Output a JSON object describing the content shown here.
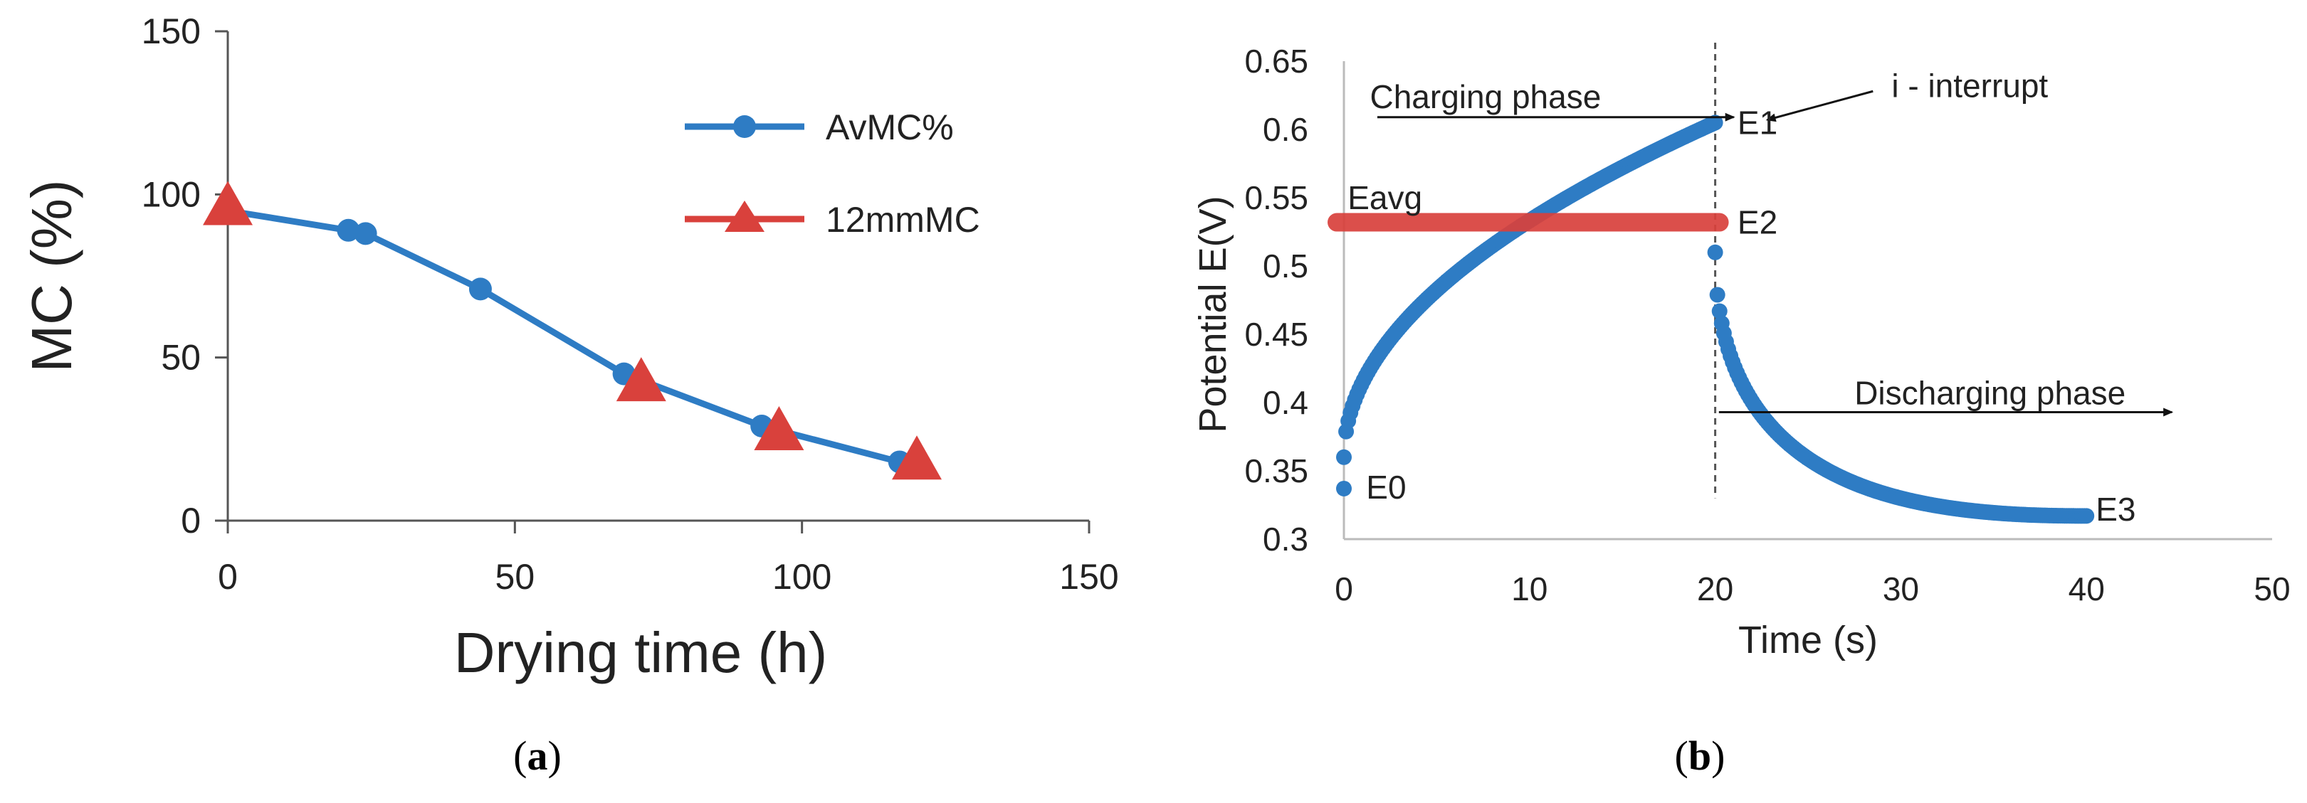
{
  "colors": {
    "series_blue": "#2e7cc4",
    "series_red": "#d9413c",
    "axis": "#555555",
    "text": "#222222",
    "annotation": "#111111"
  },
  "chart_data": [
    {
      "type": "line",
      "panel_label": "a",
      "title": "",
      "xlabel": "Drying time (h)",
      "ylabel": "MC (%)",
      "xlim": [
        0,
        150
      ],
      "ylim": [
        0,
        150
      ],
      "xticks": [
        0,
        50,
        100,
        150
      ],
      "yticks": [
        0,
        50,
        100,
        150
      ],
      "grid": false,
      "legend": "right",
      "series": [
        {
          "name": "AvMC%",
          "marker": "circle",
          "x": [
            0,
            21,
            24,
            44,
            69,
            93,
            117
          ],
          "y": [
            95,
            89,
            88,
            71,
            45,
            29,
            18
          ]
        },
        {
          "name": "12mmMC",
          "marker": "triangle",
          "x": [
            0,
            72,
            96,
            120
          ],
          "y": [
            96,
            42,
            27,
            18
          ]
        }
      ]
    },
    {
      "type": "scatter",
      "panel_label": "b",
      "title": "",
      "xlabel": "Time (s)",
      "ylabel": "Potential E(V)",
      "xlim": [
        0,
        50
      ],
      "ylim": [
        0.3,
        0.65
      ],
      "xticks": [
        0,
        10,
        20,
        30,
        40,
        50
      ],
      "yticks": [
        0.3,
        0.35,
        0.4,
        0.45,
        0.5,
        0.55,
        0.6,
        0.65
      ],
      "grid": false,
      "series": [
        {
          "name": "Charging",
          "x_range": [
            0,
            20
          ],
          "start_y": 0.36,
          "end_y": 0.605,
          "extra_points": [
            {
              "x": 0,
              "y": 0.337
            }
          ]
        },
        {
          "name": "Discharging",
          "x_range": [
            20,
            40
          ],
          "start_y": 0.51,
          "end_y": 0.317
        },
        {
          "name": "Eavg",
          "y": 0.532,
          "x_range": [
            0,
            20
          ]
        }
      ],
      "annotations": [
        {
          "text": "E0",
          "x": 1.2,
          "y": 0.338
        },
        {
          "text": "E1",
          "x": 21.2,
          "y": 0.605
        },
        {
          "text": "E2",
          "x": 21.2,
          "y": 0.532
        },
        {
          "text": "E3",
          "x": 40.5,
          "y": 0.322
        },
        {
          "text": "Eavg",
          "x": 0.2,
          "y": 0.55
        },
        {
          "text": "i - interrupt",
          "x": 29.5,
          "y": 0.632
        },
        {
          "text": "Charging phase",
          "x": 1.4,
          "y": 0.624
        },
        {
          "text": "Discharging phase",
          "x": 27.5,
          "y": 0.407
        }
      ],
      "charging_arrow": {
        "x_from": 1.8,
        "x_to": 21.0,
        "y": 0.609
      },
      "interrupt_arrow": {
        "x_from": 28.5,
        "y_from": 0.628,
        "x_to": 22.8,
        "y_to": 0.607
      },
      "discharging_arrow": {
        "x_from": 20.2,
        "x_to": 44.6,
        "y": 0.393
      },
      "interrupt_line_x": 20
    }
  ]
}
